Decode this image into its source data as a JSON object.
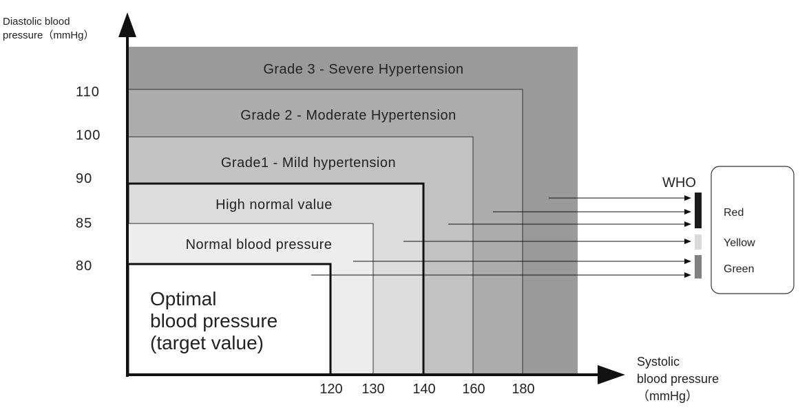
{
  "y_axis": {
    "label_line1": "Diastolic blood",
    "label_line2": "pressure（mmHg）",
    "ticks": [
      "110",
      "100",
      "90",
      "85",
      "80"
    ]
  },
  "x_axis": {
    "label_line1": "Systolic",
    "label_line2": "blood pressure",
    "label_line3": "（mmHg）",
    "ticks": [
      "120",
      "130",
      "140",
      "160",
      "180"
    ]
  },
  "zones": {
    "grade3": "Grade 3 - Severe Hypertension",
    "grade2": "Grade 2 - Moderate Hypertension",
    "grade1": "Grade1 - Mild hypertension",
    "high_normal": "High normal value",
    "normal": "Normal blood pressure",
    "optimal_line1": "Optimal",
    "optimal_line2": "blood pressure",
    "optimal_line3": "(target value)"
  },
  "legend": {
    "title": "WHO",
    "red": "Red",
    "yellow": "Yellow",
    "green": "Green"
  },
  "colors": {
    "grade3": "#9a9a9a",
    "grade2": "#acacac",
    "grade1": "#c2c2c2",
    "high_normal": "#dcdcdc",
    "normal": "#ededed",
    "optimal": "#ffffff",
    "red_indicator": "#1a1a1a",
    "yellow_indicator": "#d9d9d9",
    "green_indicator": "#808080"
  }
}
